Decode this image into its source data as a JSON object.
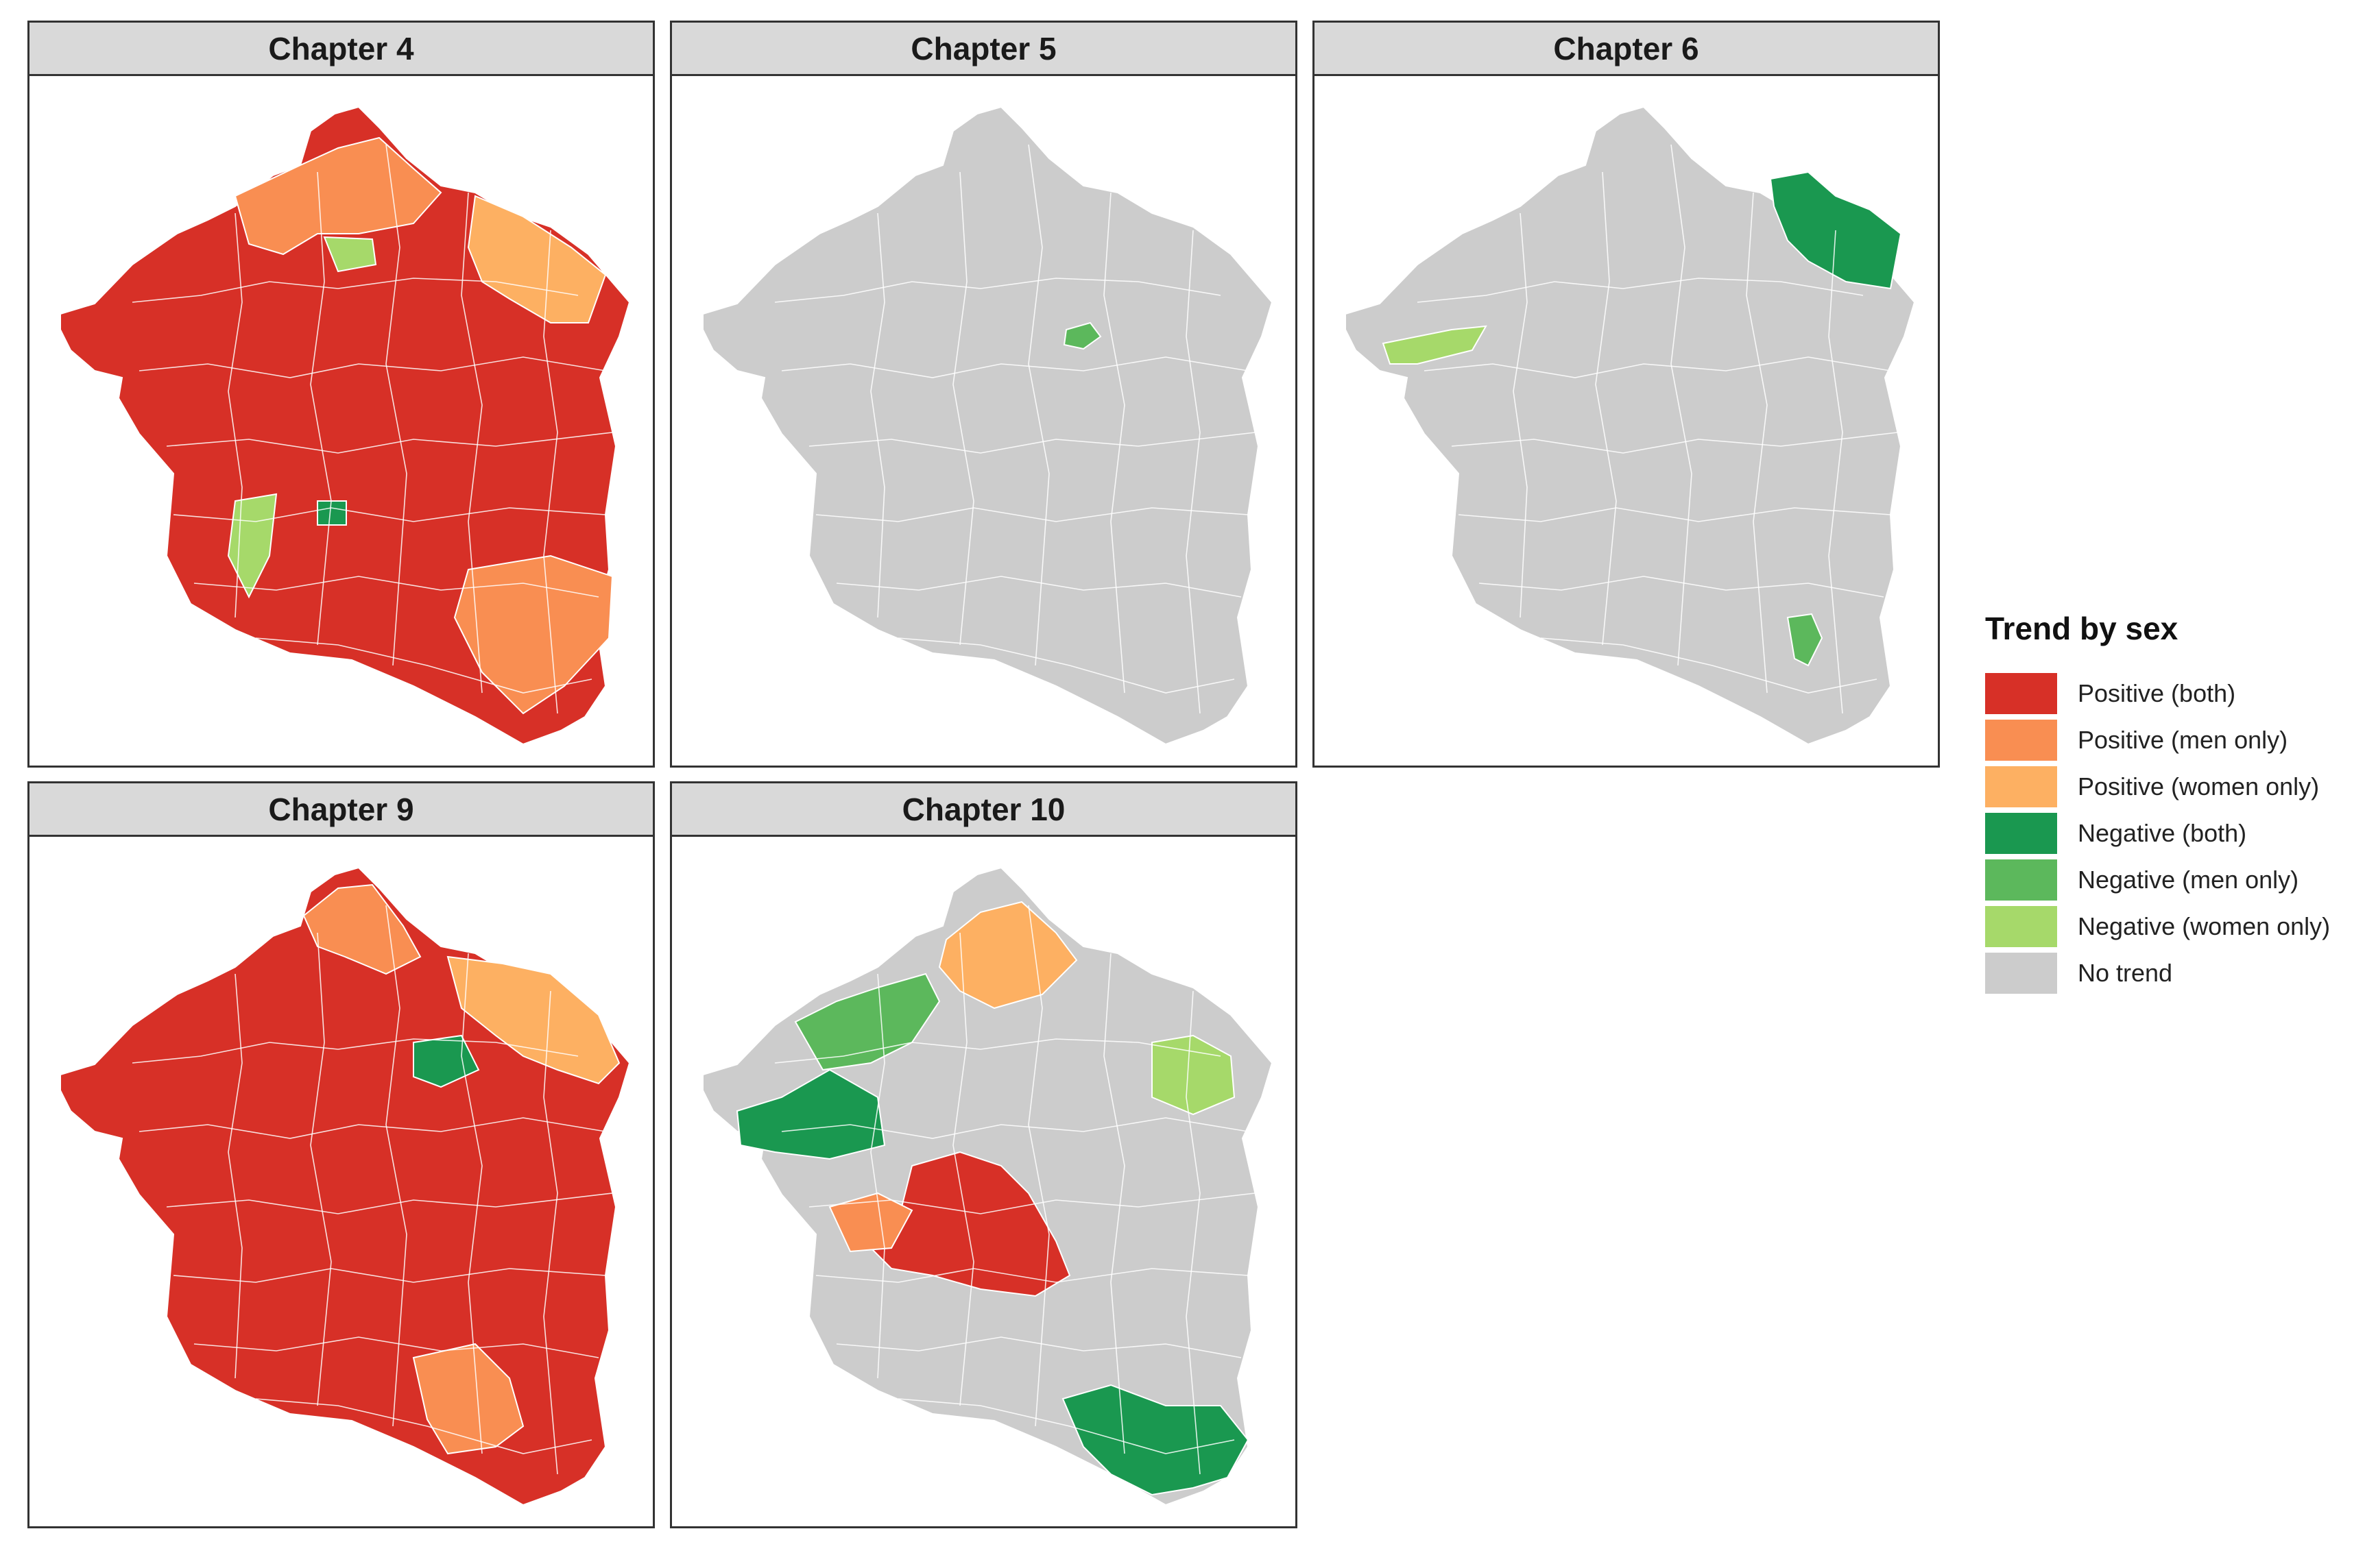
{
  "colors": {
    "positive_both": "#d73027",
    "positive_men": "#f98e52",
    "positive_women": "#fdb062",
    "negative_both": "#1a9850",
    "negative_men": "#5cb85c",
    "negative_women": "#a6d96a",
    "no_trend": "#cccccc"
  },
  "panels": [
    {
      "id": "ch4",
      "title": "Chapter 4",
      "dominant": "positive_both",
      "patches": [
        {
          "cat": "positive_men",
          "label": "north districts"
        },
        {
          "cat": "positive_women",
          "label": "north-east districts"
        },
        {
          "cat": "negative_women",
          "label": "central-north district"
        },
        {
          "cat": "negative_both",
          "label": "central district"
        },
        {
          "cat": "positive_men",
          "label": "south-east districts"
        },
        {
          "cat": "negative_women",
          "label": "west district"
        }
      ]
    },
    {
      "id": "ch5",
      "title": "Chapter 5",
      "dominant": "no_trend",
      "patches": [
        {
          "cat": "negative_men",
          "label": "central district"
        }
      ]
    },
    {
      "id": "ch6",
      "title": "Chapter 6",
      "dominant": "no_trend",
      "patches": [
        {
          "cat": "negative_both",
          "label": "north-east districts"
        },
        {
          "cat": "negative_women",
          "label": "west district"
        },
        {
          "cat": "negative_men",
          "label": "south-east district"
        }
      ]
    },
    {
      "id": "ch9",
      "title": "Chapter 9",
      "dominant": "positive_both",
      "patches": [
        {
          "cat": "positive_men",
          "label": "north districts"
        },
        {
          "cat": "positive_women",
          "label": "north-east districts"
        },
        {
          "cat": "negative_both",
          "label": "central-east district"
        },
        {
          "cat": "positive_men",
          "label": "south-east districts"
        }
      ]
    },
    {
      "id": "ch10",
      "title": "Chapter 10",
      "dominant": "no_trend",
      "patches": [
        {
          "cat": "positive_women",
          "label": "north districts"
        },
        {
          "cat": "negative_men",
          "label": "north-west districts"
        },
        {
          "cat": "negative_both",
          "label": "west districts"
        },
        {
          "cat": "positive_both",
          "label": "central districts"
        },
        {
          "cat": "positive_men",
          "label": "central-west district"
        },
        {
          "cat": "negative_women",
          "label": "east district"
        },
        {
          "cat": "negative_both",
          "label": "south-east districts"
        }
      ]
    }
  ],
  "legend": {
    "title": "Trend by sex",
    "items": [
      {
        "key": "positive_both",
        "label": "Positive (both)"
      },
      {
        "key": "positive_men",
        "label": "Positive (men only)"
      },
      {
        "key": "positive_women",
        "label": "Positive (women only)"
      },
      {
        "key": "negative_both",
        "label": "Negative (both)"
      },
      {
        "key": "negative_men",
        "label": "Negative (men only)"
      },
      {
        "key": "negative_women",
        "label": "Negative (women only)"
      },
      {
        "key": "no_trend",
        "label": "No trend"
      }
    ]
  }
}
